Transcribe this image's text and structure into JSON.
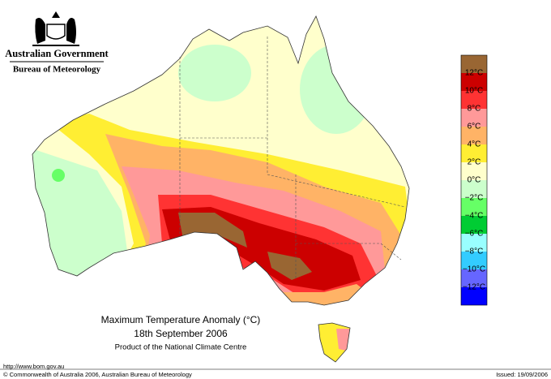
{
  "header": {
    "government": "Australian Government",
    "agency": "Bureau of Meteorology"
  },
  "title": "Maximum Temperature Anomaly (°C)",
  "date": "18th September 2006",
  "product": "Product of the National Climate Centre",
  "footer": {
    "url": "http://www.bom.gov.au",
    "copyright": "© Commonwealth of Australia 2006, Australian Bureau of Meteorology",
    "issued": "Issued: 19/09/2006"
  },
  "legend": {
    "colors": [
      "#996633",
      "#cc0000",
      "#ff3333",
      "#ff9999",
      "#ffb366",
      "#ffee33",
      "#ffffcc",
      "#ccffcc",
      "#66ff66",
      "#00cc33",
      "#99ffff",
      "#33ccff",
      "#6666ff",
      "#0000ff"
    ],
    "labels": [
      "12°C",
      "10°C",
      "8°C",
      "6°C",
      "4°C",
      "2°C",
      "0°C",
      "−2°C",
      "−4°C",
      "−6°C",
      "−8°C",
      "−10°C",
      "−12°C"
    ]
  }
}
